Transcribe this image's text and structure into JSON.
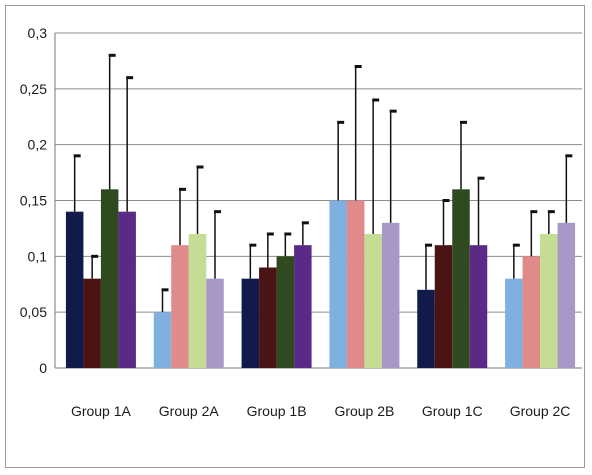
{
  "chart_data": {
    "type": "bar",
    "title": "",
    "xlabel": "",
    "ylabel": "",
    "ylim": [
      0,
      0.3
    ],
    "grid": true,
    "legend": "none",
    "y_ticks": [
      "0",
      "0,05",
      "0,1",
      "0,15",
      "0,2",
      "0,25",
      "0,3"
    ],
    "categories": [
      "Group 1A",
      "Group 2A",
      "Group 1B",
      "Group 2B",
      "Group 1C",
      "Group 2C"
    ],
    "series_colors": {
      "Group 1A": [
        "#111a4a",
        "#4a1414",
        "#2e4a1e",
        "#5a2a86"
      ],
      "Group 2A": [
        "#7fb0e0",
        "#e08a8a",
        "#c4dc94",
        "#a898c8"
      ],
      "Group 1B": [
        "#111a4a",
        "#4a1414",
        "#2e4a1e",
        "#5a2a86"
      ],
      "Group 2B": [
        "#7fb0e0",
        "#e08a8a",
        "#c4dc94",
        "#a898c8"
      ],
      "Group 1C": [
        "#111a4a",
        "#4a1414",
        "#2e4a1e",
        "#5a2a86"
      ],
      "Group 2C": [
        "#7fb0e0",
        "#e08a8a",
        "#c4dc94",
        "#a898c8"
      ]
    },
    "groups": [
      {
        "category": "Group 1A",
        "values": [
          0.14,
          0.08,
          0.16,
          0.14
        ],
        "error_top": [
          0.19,
          0.1,
          0.28,
          0.26
        ]
      },
      {
        "category": "Group 2A",
        "values": [
          0.05,
          0.11,
          0.12,
          0.08
        ],
        "error_top": [
          0.07,
          0.16,
          0.18,
          0.14
        ]
      },
      {
        "category": "Group 1B",
        "values": [
          0.08,
          0.09,
          0.1,
          0.11
        ],
        "error_top": [
          0.11,
          0.12,
          0.12,
          0.13
        ]
      },
      {
        "category": "Group 2B",
        "values": [
          0.15,
          0.15,
          0.12,
          0.13
        ],
        "error_top": [
          0.22,
          0.27,
          0.24,
          0.23
        ]
      },
      {
        "category": "Group 1C",
        "values": [
          0.07,
          0.11,
          0.16,
          0.11
        ],
        "error_top": [
          0.11,
          0.15,
          0.22,
          0.17
        ]
      },
      {
        "category": "Group 2C",
        "values": [
          0.08,
          0.1,
          0.12,
          0.13
        ],
        "error_top": [
          0.11,
          0.14,
          0.14,
          0.19
        ]
      }
    ]
  }
}
